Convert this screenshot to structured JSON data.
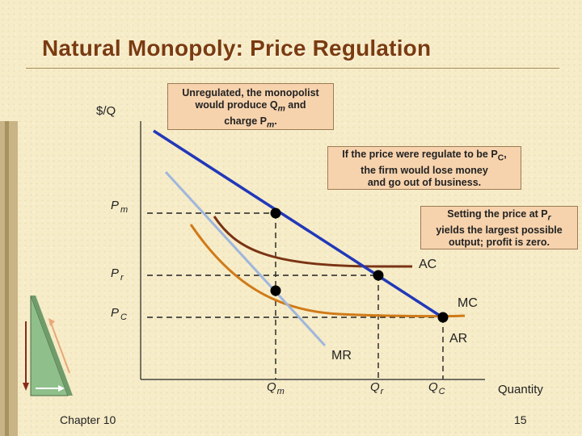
{
  "title": "Natural Monopoly: Price Regulation",
  "callouts": {
    "unregulated": {
      "line1": "Unregulated, the monopolist",
      "line2_pre": "would produce Q",
      "line2_sub": "m",
      "line2_post": " and",
      "line3_pre": "charge P",
      "line3_sub": "m",
      "line3_post": "."
    },
    "lose_money": {
      "line1_pre": "If the price were regulate to be P",
      "line1_sub": "C",
      "line1_post": ",",
      "line2": "the firm would lose money",
      "line3": "and go out of business."
    },
    "set_price": {
      "line1_pre": "Setting the price at P",
      "line1_sub": "r",
      "line2": "yields the largest possible",
      "line3": "output; profit is zero."
    }
  },
  "axes": {
    "y_label": "$/Q",
    "x_label": "Quantity"
  },
  "price_levels": [
    {
      "id": "pm",
      "main": "P",
      "sub": "m"
    },
    {
      "id": "pr",
      "main": "P",
      "sub": "r"
    },
    {
      "id": "pc",
      "main": "P",
      "sub": "C"
    }
  ],
  "quantity_levels": [
    {
      "id": "qm",
      "main": "Q",
      "sub": "m"
    },
    {
      "id": "qr",
      "main": "Q",
      "sub": "r"
    },
    {
      "id": "qc",
      "main": "Q",
      "sub": "C"
    }
  ],
  "curves": {
    "ac": "AC",
    "mc": "MC",
    "ar": "AR",
    "mr": "MR"
  },
  "colors": {
    "title": "#7a3b10",
    "ar_line": "#2238b8",
    "mr_line": "#9fb6dd",
    "ac_curve": "#7a3414",
    "mc_curve": "#d07a18",
    "callout_fill": "#f7d3ad",
    "background": "#f6ecc8"
  },
  "footer": {
    "chapter": "Chapter 10",
    "page": "15"
  }
}
